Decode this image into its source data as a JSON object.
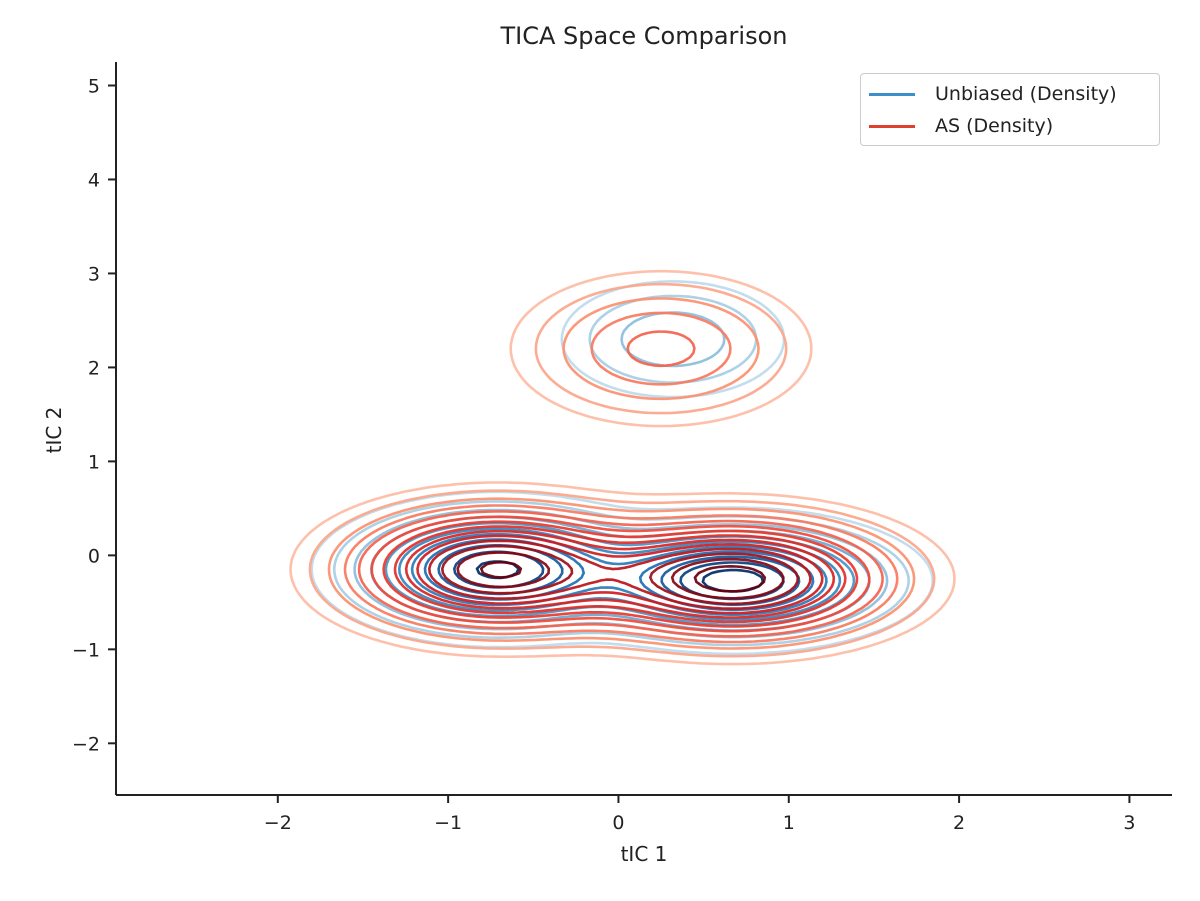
{
  "chart_data": {
    "type": "contour",
    "title": "TICA Space Comparison",
    "xlabel": "tIC 1",
    "ylabel": "tIC 2",
    "xlim": [
      -2.95,
      3.25
    ],
    "ylim": [
      -2.55,
      5.25
    ],
    "xticks": [
      "−2",
      "−1",
      "0",
      "1",
      "2",
      "3"
    ],
    "xtick_values": [
      -2,
      -1,
      0,
      1,
      2,
      3
    ],
    "yticks": [
      "−2",
      "−1",
      "0",
      "1",
      "2",
      "3",
      "4",
      "5"
    ],
    "ytick_values": [
      -2,
      -1,
      0,
      1,
      2,
      3,
      4,
      5
    ],
    "grid": false,
    "legend_position": "top-right",
    "series": [
      {
        "name": "Unbiased (Density)",
        "color": "#3d8fc7",
        "colormap": "Blues",
        "components": [
          {
            "center": [
              -0.72,
              -0.15
            ],
            "sigma": [
              0.42,
              0.32
            ],
            "weight": 0.45
          },
          {
            "center": [
              0.68,
              -0.27
            ],
            "sigma": [
              0.45,
              0.3
            ],
            "weight": 0.47
          },
          {
            "center": [
              0.32,
              2.3
            ],
            "sigma": [
              0.35,
              0.33
            ],
            "weight": 0.08
          }
        ],
        "levels": 11
      },
      {
        "name": "AS (Density)",
        "color": "#e0412e",
        "colormap": "Reds",
        "components": [
          {
            "center": [
              -0.72,
              -0.15
            ],
            "sigma": [
              0.47,
              0.36
            ],
            "weight": 0.42
          },
          {
            "center": [
              0.68,
              -0.25
            ],
            "sigma": [
              0.5,
              0.35
            ],
            "weight": 0.46
          },
          {
            "center": [
              0.25,
              2.2
            ],
            "sigma": [
              0.45,
              0.42
            ],
            "weight": 0.12
          }
        ],
        "levels": 14
      }
    ]
  }
}
